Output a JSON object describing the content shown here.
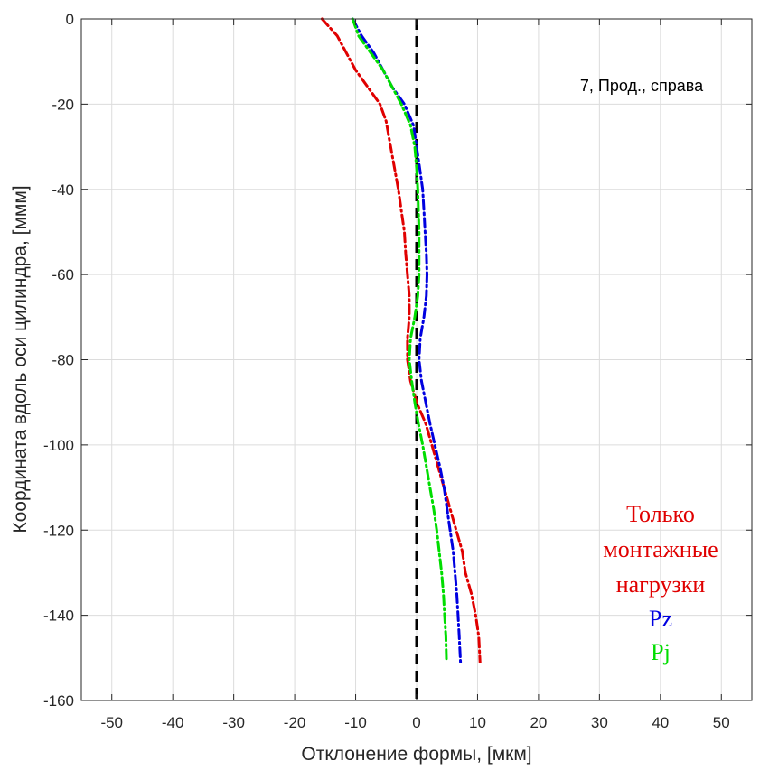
{
  "chart_data": {
    "type": "line",
    "title": "",
    "annotation": "7, Прод., справа",
    "xlabel": "Отклонение формы, [мкм]",
    "ylabel": "Координата вдоль оси цилиндра, [ммм]",
    "xlim": [
      -55,
      55
    ],
    "ylim": [
      -160,
      0
    ],
    "xticks": [
      -50,
      -40,
      -30,
      -20,
      -10,
      0,
      10,
      20,
      30,
      40,
      50
    ],
    "yticks": [
      0,
      -20,
      -40,
      -60,
      -80,
      -100,
      -120,
      -140,
      -160
    ],
    "grid": true,
    "reference_line": {
      "x": 0,
      "style": "dashed",
      "color": "#000000"
    },
    "legend_position": "bottom-right",
    "legend_lines": [
      {
        "text": "Только",
        "color": "#e00000"
      },
      {
        "text": "монтажные",
        "color": "#e00000"
      },
      {
        "text": "нагрузки",
        "color": "#e00000"
      },
      {
        "text": "Pz",
        "color": "#0000e0"
      },
      {
        "text": "Pj",
        "color": "#00dd00"
      }
    ],
    "series": [
      {
        "name": "Только монтажные нагрузки",
        "color": "#e00000",
        "points": [
          [
            -15.5,
            0
          ],
          [
            -13,
            -4
          ],
          [
            -11.5,
            -8
          ],
          [
            -10,
            -12
          ],
          [
            -8,
            -16
          ],
          [
            -6,
            -20
          ],
          [
            -5,
            -24
          ],
          [
            -4.5,
            -28
          ],
          [
            -4,
            -32
          ],
          [
            -3.5,
            -36
          ],
          [
            -3,
            -40
          ],
          [
            -2.5,
            -45
          ],
          [
            -2,
            -50
          ],
          [
            -1.8,
            -55
          ],
          [
            -1.5,
            -60
          ],
          [
            -1.2,
            -65
          ],
          [
            -1.2,
            -70
          ],
          [
            -1.5,
            -75
          ],
          [
            -1.5,
            -80
          ],
          [
            -1,
            -85
          ],
          [
            0,
            -90
          ],
          [
            1.5,
            -95
          ],
          [
            2.5,
            -100
          ],
          [
            3.5,
            -105
          ],
          [
            4.5,
            -110
          ],
          [
            5.5,
            -115
          ],
          [
            6.5,
            -120
          ],
          [
            7.5,
            -125
          ],
          [
            8,
            -130
          ],
          [
            9,
            -135
          ],
          [
            9.7,
            -140
          ],
          [
            10.2,
            -145
          ],
          [
            10.4,
            -151
          ]
        ]
      },
      {
        "name": "Pz",
        "color": "#0000e0",
        "points": [
          [
            -10.5,
            0
          ],
          [
            -9,
            -4
          ],
          [
            -7,
            -8
          ],
          [
            -5.5,
            -12
          ],
          [
            -4,
            -16
          ],
          [
            -2,
            -20
          ],
          [
            -0.5,
            -25
          ],
          [
            0,
            -30
          ],
          [
            0.5,
            -35
          ],
          [
            1,
            -40
          ],
          [
            1.2,
            -45
          ],
          [
            1.4,
            -50
          ],
          [
            1.6,
            -55
          ],
          [
            1.7,
            -60
          ],
          [
            1.6,
            -65
          ],
          [
            1.2,
            -70
          ],
          [
            0.6,
            -75
          ],
          [
            0.4,
            -80
          ],
          [
            0.8,
            -85
          ],
          [
            1.5,
            -90
          ],
          [
            2.2,
            -95
          ],
          [
            3,
            -100
          ],
          [
            3.8,
            -105
          ],
          [
            4.5,
            -110
          ],
          [
            5,
            -115
          ],
          [
            5.5,
            -120
          ],
          [
            6,
            -125
          ],
          [
            6.3,
            -130
          ],
          [
            6.6,
            -135
          ],
          [
            6.8,
            -140
          ],
          [
            7,
            -145
          ],
          [
            7.2,
            -151
          ]
        ]
      },
      {
        "name": "Pj",
        "color": "#00dd00",
        "points": [
          [
            -10.5,
            0
          ],
          [
            -9.5,
            -4
          ],
          [
            -7.5,
            -8
          ],
          [
            -5.5,
            -12
          ],
          [
            -4,
            -16
          ],
          [
            -2.5,
            -20
          ],
          [
            -1,
            -25
          ],
          [
            -0.3,
            -30
          ],
          [
            0,
            -35
          ],
          [
            0.2,
            -40
          ],
          [
            0.3,
            -45
          ],
          [
            0.4,
            -50
          ],
          [
            0.4,
            -55
          ],
          [
            0.4,
            -60
          ],
          [
            0.2,
            -65
          ],
          [
            -0.3,
            -70
          ],
          [
            -1,
            -75
          ],
          [
            -1.2,
            -80
          ],
          [
            -0.8,
            -85
          ],
          [
            -0.3,
            -90
          ],
          [
            0.3,
            -95
          ],
          [
            1,
            -100
          ],
          [
            1.6,
            -105
          ],
          [
            2.2,
            -110
          ],
          [
            2.8,
            -115
          ],
          [
            3.3,
            -120
          ],
          [
            3.7,
            -125
          ],
          [
            4.1,
            -130
          ],
          [
            4.4,
            -135
          ],
          [
            4.6,
            -140
          ],
          [
            4.8,
            -145
          ],
          [
            4.9,
            -151
          ]
        ]
      }
    ]
  }
}
